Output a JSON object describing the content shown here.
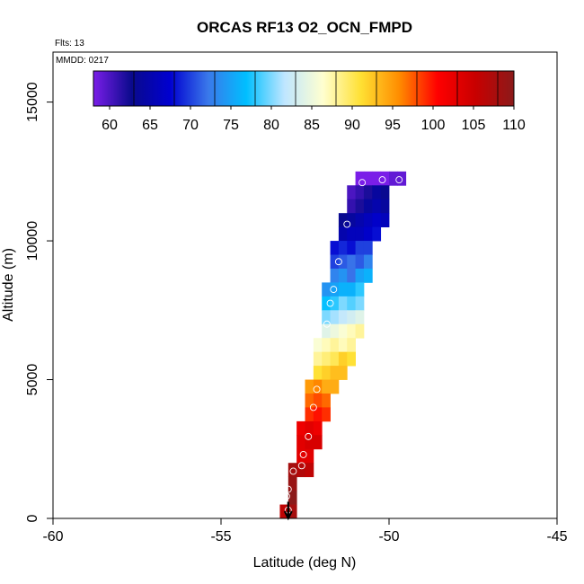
{
  "chart_data": {
    "type": "heatmap",
    "title": "ORCAS RF13 O2_OCN_FMPD",
    "flights_label": "Flts: 13",
    "date_label": "MMDD: 0217",
    "xlabel": "Latitude (deg N)",
    "ylabel": "Altitude (m)",
    "xlim": [
      -60,
      -45
    ],
    "ylim": [
      0,
      16800
    ],
    "x_ticks": [
      "-60",
      "-55",
      "-50",
      "-45"
    ],
    "y_ticks": [
      "0",
      "5000",
      "10000",
      "15000"
    ],
    "x_tick_values": [
      -60,
      -55,
      -50,
      -45
    ],
    "y_tick_values": [
      0,
      5000,
      10000,
      15000
    ],
    "colorbar": {
      "min": 58,
      "max": 110,
      "ticks": [
        "60",
        "65",
        "70",
        "75",
        "80",
        "85",
        "90",
        "95",
        "100",
        "105",
        "110"
      ],
      "tick_values": [
        60,
        65,
        70,
        75,
        80,
        85,
        90,
        95,
        100,
        105,
        110
      ],
      "stops": [
        "#7a1ee8",
        "#0a0a8c",
        "#0000d0",
        "#3a78ea",
        "#00bfff",
        "#bfe6ff",
        "#ffffd0",
        "#ffe033",
        "#ff8c00",
        "#ff0000",
        "#c80000",
        "#8b1a1a"
      ]
    },
    "grid": false,
    "cell_width_deg": 0.25,
    "cell_height_m": 500,
    "rows": [
      {
        "alt": 12000,
        "cells": [
          [
            -51.0,
            58
          ],
          [
            -50.75,
            58
          ],
          [
            -50.5,
            58
          ],
          [
            -50.25,
            58
          ],
          [
            -50.0,
            59
          ],
          [
            -49.75,
            59
          ]
        ]
      },
      {
        "alt": 11500,
        "cells": [
          [
            -51.25,
            60
          ],
          [
            -51.0,
            61
          ],
          [
            -50.75,
            62
          ],
          [
            -50.5,
            64
          ],
          [
            -50.25,
            63
          ]
        ]
      },
      {
        "alt": 11000,
        "cells": [
          [
            -51.25,
            61
          ],
          [
            -51.0,
            62
          ],
          [
            -50.75,
            64
          ],
          [
            -50.5,
            65
          ],
          [
            -50.25,
            64
          ]
        ]
      },
      {
        "alt": 10500,
        "cells": [
          [
            -51.5,
            63
          ],
          [
            -51.25,
            64
          ],
          [
            -51.0,
            65
          ],
          [
            -50.75,
            66
          ],
          [
            -50.5,
            67
          ],
          [
            -50.25,
            66
          ]
        ]
      },
      {
        "alt": 10000,
        "cells": [
          [
            -51.5,
            65
          ],
          [
            -51.25,
            66
          ],
          [
            -51.0,
            66
          ],
          [
            -50.75,
            67
          ],
          [
            -50.5,
            68
          ]
        ]
      },
      {
        "alt": 9500,
        "cells": [
          [
            -51.75,
            68
          ],
          [
            -51.5,
            69
          ],
          [
            -51.25,
            68
          ],
          [
            -51.0,
            70
          ],
          [
            -50.75,
            70
          ]
        ]
      },
      {
        "alt": 9000,
        "cells": [
          [
            -51.75,
            70
          ],
          [
            -51.5,
            71
          ],
          [
            -51.25,
            72
          ],
          [
            -51.0,
            71
          ],
          [
            -50.75,
            73
          ]
        ]
      },
      {
        "alt": 8500,
        "cells": [
          [
            -51.75,
            73
          ],
          [
            -51.5,
            74
          ],
          [
            -51.25,
            72
          ],
          [
            -51.0,
            75
          ],
          [
            -50.75,
            76
          ]
        ]
      },
      {
        "alt": 8000,
        "cells": [
          [
            -52.0,
            74
          ],
          [
            -51.75,
            75
          ],
          [
            -51.5,
            76
          ],
          [
            -51.25,
            76
          ],
          [
            -51.0,
            78
          ]
        ]
      },
      {
        "alt": 7500,
        "cells": [
          [
            -52.0,
            77
          ],
          [
            -51.75,
            78
          ],
          [
            -51.5,
            80
          ],
          [
            -51.25,
            79
          ],
          [
            -51.0,
            80
          ]
        ]
      },
      {
        "alt": 7000,
        "cells": [
          [
            -52.0,
            80
          ],
          [
            -51.75,
            81
          ],
          [
            -51.5,
            82
          ],
          [
            -51.25,
            83
          ],
          [
            -51.0,
            84
          ]
        ]
      },
      {
        "alt": 6500,
        "cells": [
          [
            -52.0,
            84
          ],
          [
            -51.75,
            85
          ],
          [
            -51.5,
            86
          ],
          [
            -51.25,
            87
          ],
          [
            -51.0,
            88
          ]
        ]
      },
      {
        "alt": 6000,
        "cells": [
          [
            -52.25,
            86
          ],
          [
            -52.0,
            87
          ],
          [
            -51.75,
            88
          ],
          [
            -51.5,
            87
          ],
          [
            -51.25,
            88
          ]
        ]
      },
      {
        "alt": 5500,
        "cells": [
          [
            -52.25,
            88
          ],
          [
            -52.0,
            89
          ],
          [
            -51.75,
            90
          ],
          [
            -51.5,
            92
          ],
          [
            -51.25,
            91
          ]
        ]
      },
      {
        "alt": 5000,
        "cells": [
          [
            -52.25,
            91
          ],
          [
            -52.0,
            92
          ],
          [
            -51.75,
            93
          ],
          [
            -51.5,
            93
          ]
        ]
      },
      {
        "alt": 4500,
        "cells": [
          [
            -52.5,
            95
          ],
          [
            -52.25,
            96
          ],
          [
            -52.0,
            94
          ],
          [
            -51.75,
            94
          ]
        ]
      },
      {
        "alt": 4000,
        "cells": [
          [
            -52.5,
            97
          ],
          [
            -52.25,
            98
          ],
          [
            -52.0,
            97
          ]
        ]
      },
      {
        "alt": 3500,
        "cells": [
          [
            -52.5,
            99
          ],
          [
            -52.25,
            100
          ],
          [
            -52.0,
            99
          ]
        ]
      },
      {
        "alt": 3000,
        "cells": [
          [
            -52.75,
            102
          ],
          [
            -52.5,
            103
          ],
          [
            -52.25,
            102
          ]
        ]
      },
      {
        "alt": 2500,
        "cells": [
          [
            -52.75,
            103
          ],
          [
            -52.5,
            104
          ],
          [
            -52.25,
            104
          ]
        ]
      },
      {
        "alt": 2000,
        "cells": [
          [
            -52.75,
            103
          ],
          [
            -52.5,
            103
          ]
        ]
      },
      {
        "alt": 1500,
        "cells": [
          [
            -53.0,
            108
          ],
          [
            -52.75,
            107
          ],
          [
            -52.5,
            106
          ]
        ]
      },
      {
        "alt": 1000,
        "cells": [
          [
            -53.0,
            109
          ]
        ]
      },
      {
        "alt": 500,
        "cells": [
          [
            -53.0,
            110
          ]
        ]
      },
      {
        "alt": 0,
        "cells": [
          [
            -53.25,
            106
          ],
          [
            -53.0,
            108
          ]
        ]
      }
    ],
    "samples": [
      [
        -50.8,
        12100
      ],
      [
        -50.2,
        12200
      ],
      [
        -49.7,
        12200
      ],
      [
        -51.25,
        10600
      ],
      [
        -51.5,
        9250
      ],
      [
        -51.65,
        8250
      ],
      [
        -51.75,
        7750
      ],
      [
        -51.85,
        7000
      ],
      [
        -52.15,
        4650
      ],
      [
        -52.25,
        4000
      ],
      [
        -52.4,
        2950
      ],
      [
        -52.55,
        2300
      ],
      [
        -52.6,
        1900
      ],
      [
        -52.85,
        1700
      ],
      [
        -53.0,
        1050
      ],
      [
        -53.05,
        800
      ],
      [
        -53.0,
        300
      ]
    ],
    "arrow": {
      "lat": -53.0,
      "alt_from": 600,
      "alt_to": 0
    }
  }
}
